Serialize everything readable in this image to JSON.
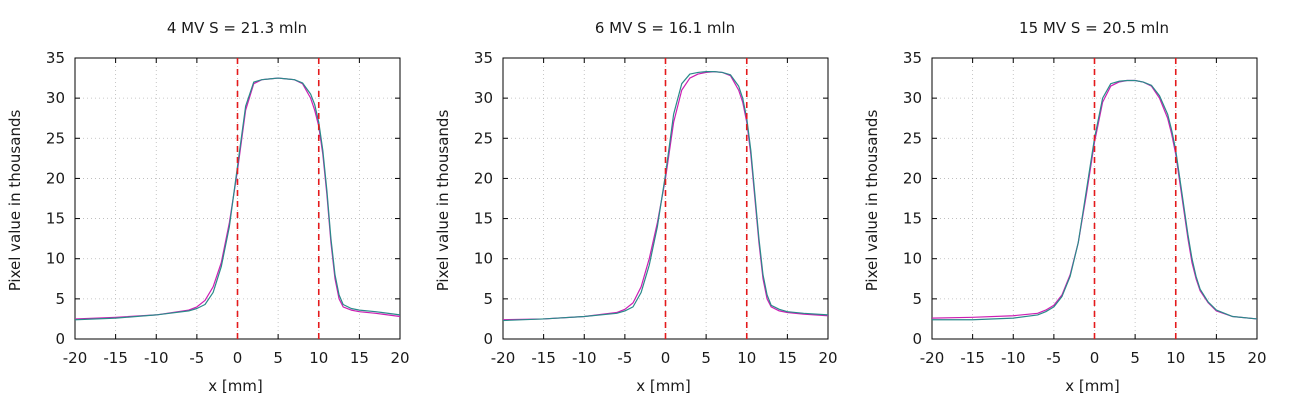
{
  "chart_data": [
    {
      "type": "line",
      "title": "4 MV S = 21.3 mln",
      "xlabel": "x [mm]",
      "ylabel": "Pixel value in thousands",
      "xlim": [
        -20,
        20
      ],
      "ylim": [
        0,
        35
      ],
      "xticks": [
        -20,
        -15,
        -10,
        -5,
        0,
        5,
        10,
        15,
        20
      ],
      "yticks": [
        0,
        5,
        10,
        15,
        20,
        25,
        30,
        35
      ],
      "grid": true,
      "vlines": [
        0,
        10
      ],
      "vline_color": "#e41a1c",
      "series": [
        {
          "color": "#cc1fb3",
          "x": [
            -20,
            -15,
            -10,
            -6,
            -5,
            -4,
            -3,
            -2,
            -1,
            0,
            1,
            2,
            3,
            4,
            5,
            6,
            7,
            8,
            9,
            9.5,
            10,
            10.5,
            11,
            11.5,
            12,
            12.5,
            13,
            14,
            15,
            17,
            20
          ],
          "y": [
            2.5,
            2.7,
            3.0,
            3.6,
            4.0,
            4.8,
            6.5,
            9.5,
            14.5,
            21.0,
            28.5,
            31.8,
            32.3,
            32.4,
            32.5,
            32.4,
            32.3,
            31.8,
            30.0,
            28.5,
            26.5,
            23.0,
            18.0,
            12.0,
            7.5,
            5.0,
            4.0,
            3.6,
            3.4,
            3.2,
            2.8
          ]
        },
        {
          "color": "#2a8a8a",
          "x": [
            -20,
            -15,
            -10,
            -6,
            -5,
            -4,
            -3,
            -2,
            -1,
            0,
            1,
            2,
            3,
            4,
            5,
            6,
            7,
            8,
            9,
            9.5,
            10,
            10.5,
            11,
            11.5,
            12,
            12.5,
            13,
            14,
            15,
            17,
            20
          ],
          "y": [
            2.4,
            2.6,
            3.0,
            3.5,
            3.8,
            4.3,
            5.8,
            9.0,
            14.0,
            21.5,
            29.0,
            32.0,
            32.3,
            32.4,
            32.5,
            32.4,
            32.3,
            31.9,
            30.5,
            29.2,
            27.0,
            23.5,
            18.5,
            12.5,
            8.0,
            5.5,
            4.3,
            3.8,
            3.6,
            3.4,
            3.0
          ]
        }
      ]
    },
    {
      "type": "line",
      "title": "6 MV S = 16.1 mln",
      "xlabel": "x [mm]",
      "ylabel": "Pixel value in thousands",
      "xlim": [
        -20,
        20
      ],
      "ylim": [
        0,
        35
      ],
      "xticks": [
        -20,
        -15,
        -10,
        -5,
        0,
        5,
        10,
        15,
        20
      ],
      "yticks": [
        0,
        5,
        10,
        15,
        20,
        25,
        30,
        35
      ],
      "grid": true,
      "vlines": [
        0,
        10
      ],
      "vline_color": "#e41a1c",
      "series": [
        {
          "color": "#cc1fb3",
          "x": [
            -20,
            -15,
            -10,
            -6,
            -5,
            -4,
            -3,
            -2,
            -1,
            0,
            1,
            2,
            3,
            4,
            5,
            6,
            7,
            8,
            9,
            9.5,
            10,
            10.5,
            11,
            11.5,
            12,
            12.5,
            13,
            14,
            15,
            17,
            20
          ],
          "y": [
            2.4,
            2.5,
            2.8,
            3.3,
            3.7,
            4.5,
            6.5,
            10.0,
            14.5,
            20.0,
            27.0,
            31.0,
            32.5,
            33.0,
            33.2,
            33.3,
            33.2,
            32.8,
            31.0,
            29.5,
            27.0,
            23.0,
            17.5,
            12.0,
            7.5,
            5.0,
            4.0,
            3.5,
            3.3,
            3.1,
            2.9
          ]
        },
        {
          "color": "#2a8a8a",
          "x": [
            -20,
            -15,
            -10,
            -6,
            -5,
            -4,
            -3,
            -2,
            -1,
            0,
            1,
            2,
            3,
            4,
            5,
            6,
            7,
            8,
            9,
            9.5,
            10,
            10.5,
            11,
            11.5,
            12,
            12.5,
            13,
            14,
            15,
            17,
            20
          ],
          "y": [
            2.3,
            2.5,
            2.8,
            3.2,
            3.5,
            4.0,
            5.8,
            9.2,
            14.0,
            20.5,
            28.0,
            31.8,
            33.0,
            33.2,
            33.3,
            33.3,
            33.2,
            32.9,
            31.5,
            30.0,
            27.5,
            23.5,
            18.0,
            12.5,
            8.0,
            5.5,
            4.2,
            3.7,
            3.4,
            3.2,
            3.0
          ]
        }
      ]
    },
    {
      "type": "line",
      "title": "15 MV S = 20.5 mln",
      "xlabel": "x [mm]",
      "ylabel": "Pixel value in thousands",
      "xlim": [
        -20,
        20
      ],
      "ylim": [
        0,
        35
      ],
      "xticks": [
        -20,
        -15,
        -10,
        -5,
        0,
        5,
        10,
        15,
        20
      ],
      "yticks": [
        0,
        5,
        10,
        15,
        20,
        25,
        30,
        35
      ],
      "grid": true,
      "vlines": [
        0,
        10
      ],
      "vline_color": "#e41a1c",
      "series": [
        {
          "color": "#cc1fb3",
          "x": [
            -20,
            -15,
            -10,
            -7,
            -6,
            -5,
            -4,
            -3,
            -2,
            -1,
            0,
            1,
            2,
            3,
            4,
            5,
            6,
            7,
            8,
            9,
            9.5,
            10,
            10.5,
            11,
            11.5,
            12,
            12.5,
            13,
            14,
            15,
            17,
            20
          ],
          "y": [
            2.6,
            2.7,
            2.9,
            3.2,
            3.6,
            4.2,
            5.5,
            8.0,
            12.0,
            18.0,
            24.5,
            29.5,
            31.5,
            32.0,
            32.2,
            32.2,
            32.0,
            31.5,
            30.0,
            27.5,
            25.5,
            23.0,
            19.5,
            16.0,
            12.5,
            9.5,
            7.5,
            6.0,
            4.5,
            3.5,
            2.8,
            2.5
          ]
        },
        {
          "color": "#2a8a8a",
          "x": [
            -20,
            -15,
            -10,
            -7,
            -6,
            -5,
            -4,
            -3,
            -2,
            -1,
            0,
            1,
            2,
            3,
            4,
            5,
            6,
            7,
            8,
            9,
            9.5,
            10,
            10.5,
            11,
            11.5,
            12,
            12.5,
            13,
            14,
            15,
            17,
            20
          ],
          "y": [
            2.4,
            2.4,
            2.6,
            3.0,
            3.4,
            4.0,
            5.3,
            7.8,
            12.0,
            18.5,
            25.0,
            30.0,
            31.8,
            32.1,
            32.2,
            32.2,
            32.0,
            31.6,
            30.3,
            28.0,
            26.0,
            23.5,
            20.0,
            16.5,
            13.0,
            10.0,
            7.8,
            6.2,
            4.6,
            3.6,
            2.8,
            2.5
          ]
        }
      ]
    }
  ]
}
